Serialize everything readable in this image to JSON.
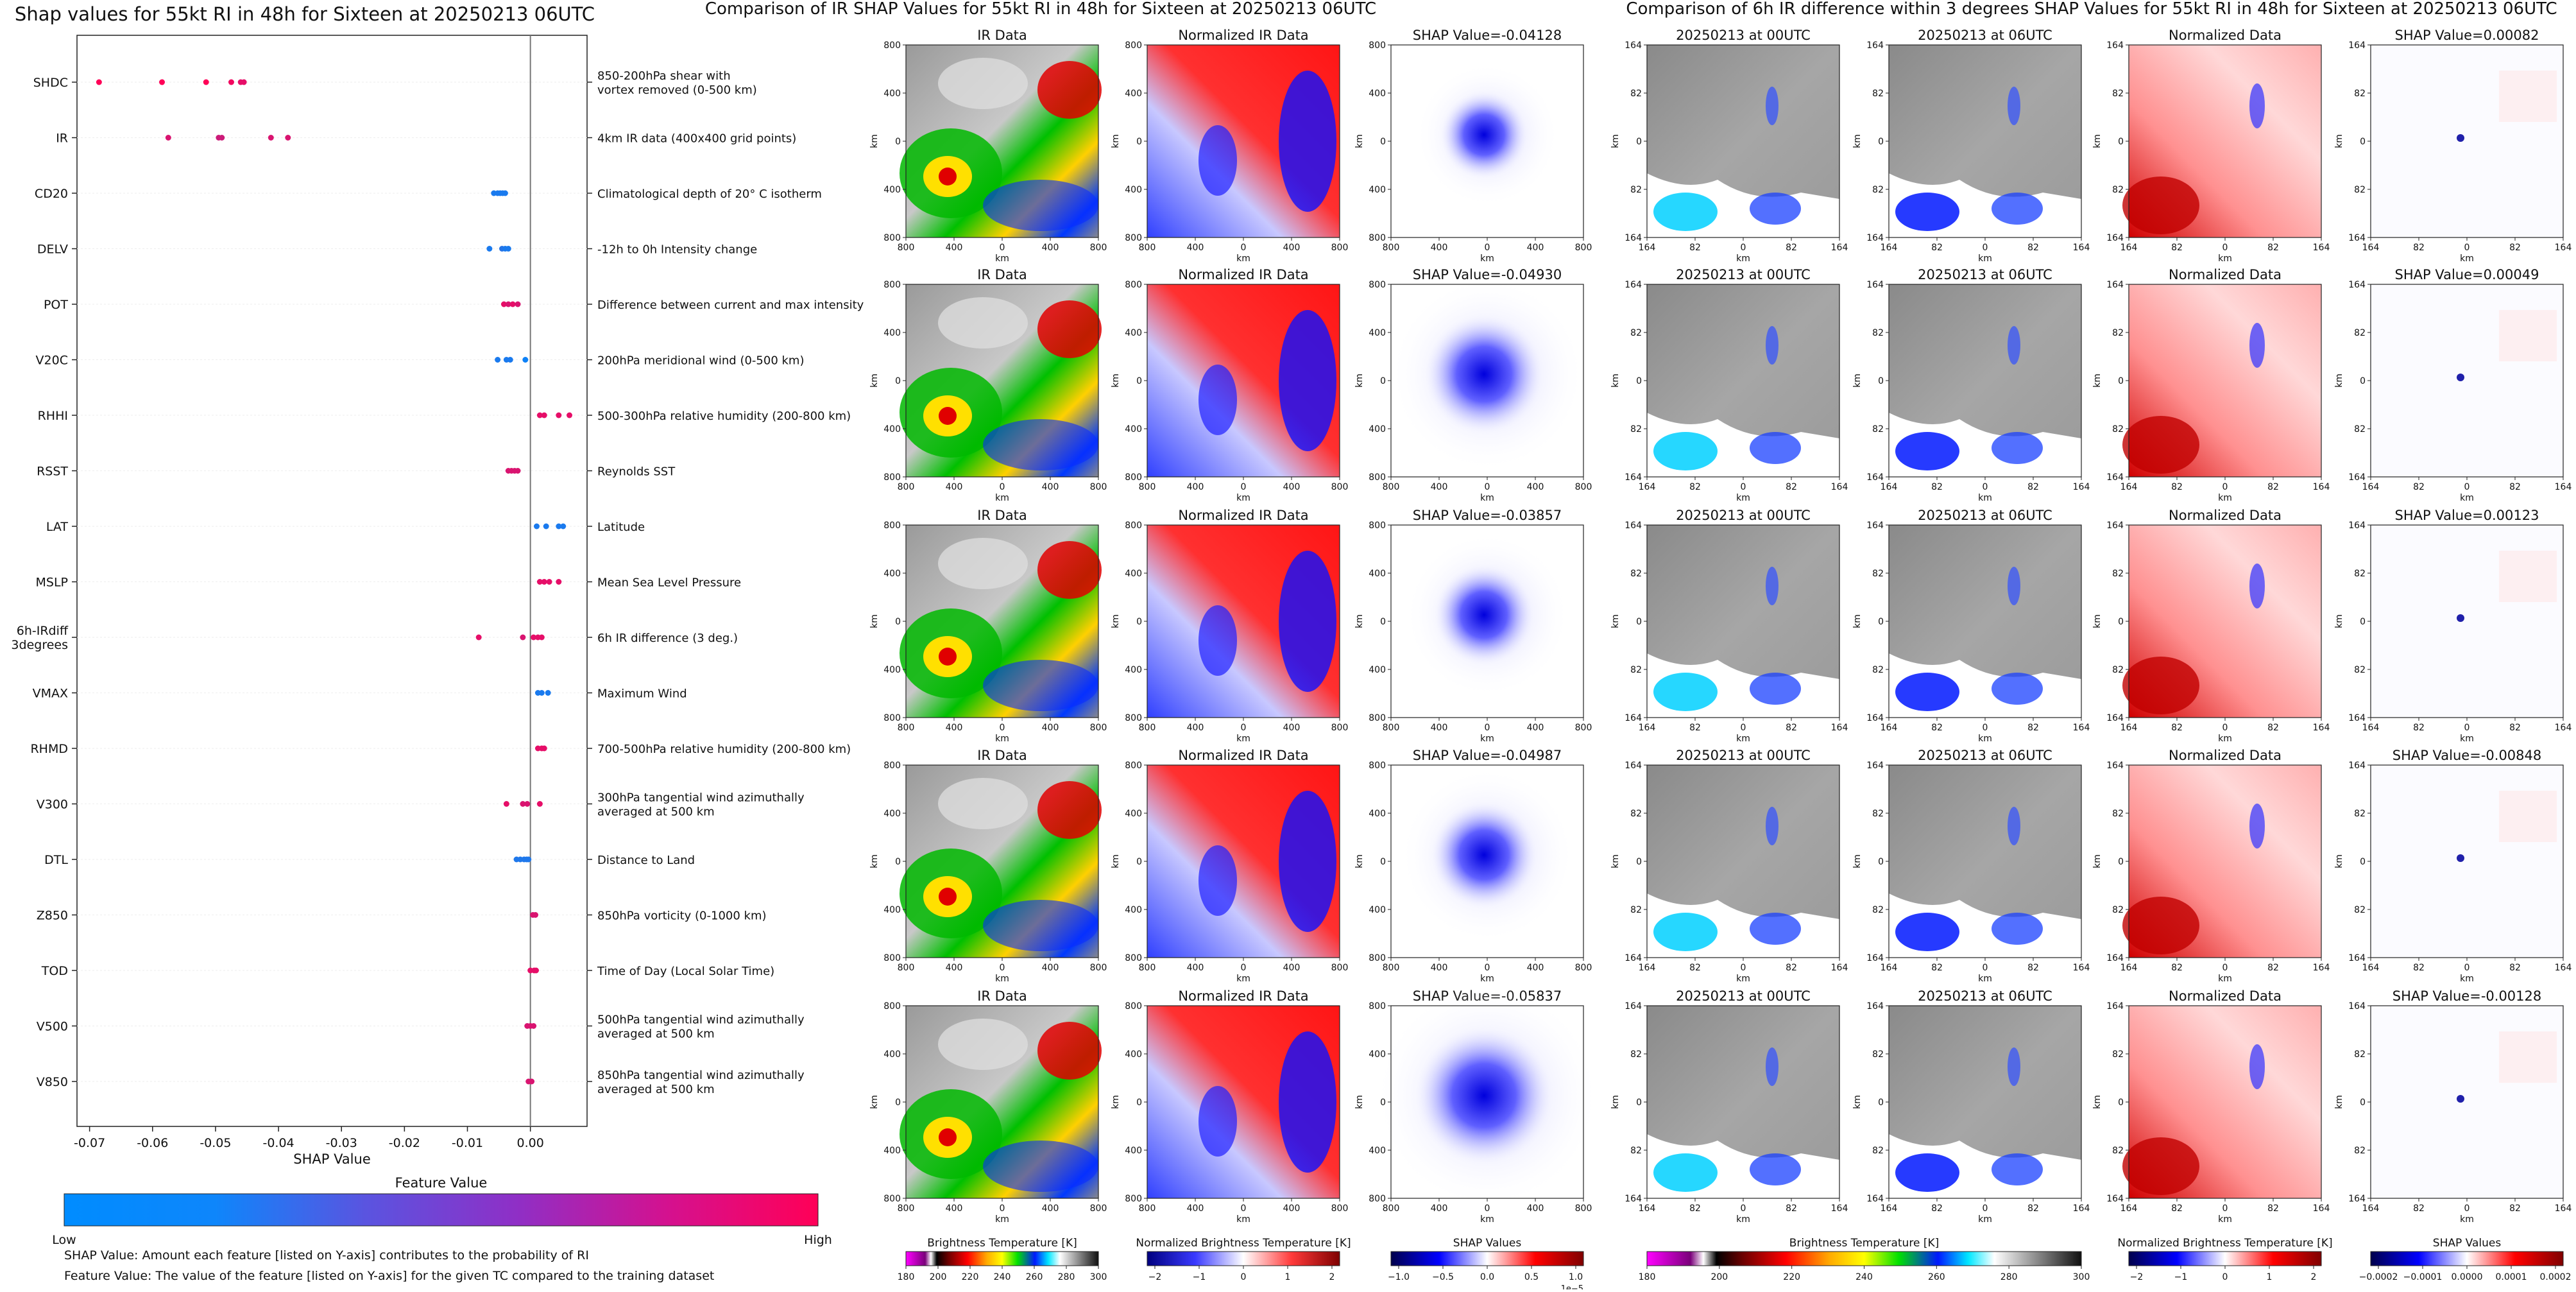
{
  "colors": {
    "feature_low": "#0088ff",
    "feature_high": "#ff0057",
    "shap_neg": "#0000cc",
    "shap_pos": "#cc0000"
  },
  "chart_data": [
    {
      "type": "scatter",
      "title": "Shap values for 55kt RI in 48h for Sixteen at 20250213 06UTC",
      "xlabel": "SHAP Value",
      "xlim": [
        -0.072,
        0.009
      ],
      "xticks": [
        "-0.07",
        "-0.06",
        "-0.05",
        "-0.04",
        "-0.03",
        "-0.02",
        "-0.01",
        "0.00"
      ],
      "xtick_values": [
        -0.07,
        -0.06,
        -0.05,
        -0.04,
        -0.03,
        -0.02,
        -0.01,
        0.0
      ],
      "colorbar": {
        "title": "Feature Value",
        "low_label": "Low",
        "high_label": "High"
      },
      "notes": [
        "SHAP Value: Amount each feature [listed on Y-axis] contributes to the probability of RI",
        "Feature Value: The value of the feature [listed on Y-axis] for the given TC compared to the training dataset"
      ],
      "features": [
        {
          "name": "SHDC",
          "desc": [
            "850-200hPa shear with",
            "vortex removed (0-500 km)"
          ],
          "points": [
            [
              -0.0685,
              1.0
            ],
            [
              -0.0585,
              1.0
            ],
            [
              -0.0515,
              1.0
            ],
            [
              -0.0475,
              0.95
            ],
            [
              -0.046,
              0.9
            ],
            [
              -0.0455,
              0.9
            ]
          ]
        },
        {
          "name": "IR",
          "desc": [
            "4km IR data (400x400 grid points)"
          ],
          "points": [
            [
              -0.0575,
              0.85
            ],
            [
              -0.0495,
              0.8
            ],
            [
              -0.049,
              0.8
            ],
            [
              -0.0412,
              0.85
            ],
            [
              -0.0385,
              0.85
            ]
          ]
        },
        {
          "name": "CD20",
          "desc": [
            "Climatological depth of 20° C isotherm"
          ],
          "points": [
            [
              -0.0058,
              0.1
            ],
            [
              -0.0052,
              0.1
            ],
            [
              -0.0048,
              0.1
            ],
            [
              -0.0044,
              0.1
            ],
            [
              -0.004,
              0.1
            ]
          ]
        },
        {
          "name": "DELV",
          "desc": [
            "-12h to 0h Intensity change"
          ],
          "points": [
            [
              -0.0065,
              0.1
            ],
            [
              -0.0045,
              0.15
            ],
            [
              -0.004,
              0.1
            ],
            [
              -0.0035,
              0.1
            ]
          ]
        },
        {
          "name": "POT",
          "desc": [
            "Difference between current and max intensity"
          ],
          "points": [
            [
              -0.0042,
              0.9
            ],
            [
              -0.0035,
              0.85
            ],
            [
              -0.0028,
              0.9
            ],
            [
              -0.002,
              0.85
            ]
          ]
        },
        {
          "name": "V20C",
          "desc": [
            "200hPa meridional wind (0-500 km)"
          ],
          "points": [
            [
              -0.0052,
              0.1
            ],
            [
              -0.0038,
              0.1
            ],
            [
              -0.0032,
              0.1
            ],
            [
              -0.0008,
              0.05
            ]
          ]
        },
        {
          "name": "RHHI",
          "desc": [
            "500-300hPa relative humidity (200-800 km)"
          ],
          "points": [
            [
              0.0015,
              0.9
            ],
            [
              0.0022,
              0.9
            ],
            [
              0.0045,
              0.9
            ],
            [
              0.0062,
              0.9
            ]
          ]
        },
        {
          "name": "RSST",
          "desc": [
            "Reynolds SST"
          ],
          "points": [
            [
              -0.0035,
              0.85
            ],
            [
              -0.003,
              0.85
            ],
            [
              -0.0025,
              0.85
            ],
            [
              -0.002,
              0.85
            ]
          ]
        },
        {
          "name": "LAT",
          "desc": [
            "Latitude"
          ],
          "points": [
            [
              0.001,
              0.1
            ],
            [
              0.0025,
              0.1
            ],
            [
              0.0045,
              0.1
            ],
            [
              0.0052,
              0.1
            ]
          ]
        },
        {
          "name": "MSLP",
          "desc": [
            "Mean Sea Level Pressure"
          ],
          "points": [
            [
              0.0015,
              0.9
            ],
            [
              0.0022,
              0.9
            ],
            [
              0.003,
              0.9
            ],
            [
              0.0045,
              0.9
            ]
          ]
        },
        {
          "name": "6h-IRdiff\n3degrees",
          "desc": [
            "6h IR difference (3 deg.)"
          ],
          "points": [
            [
              -0.0082,
              0.9
            ],
            [
              -0.0012,
              0.85
            ],
            [
              0.0005,
              0.9
            ],
            [
              0.0012,
              0.9
            ],
            [
              0.0018,
              0.9
            ]
          ]
        },
        {
          "name": "VMAX",
          "desc": [
            "Maximum Wind"
          ],
          "points": [
            [
              0.0012,
              0.1
            ],
            [
              0.0018,
              0.1
            ],
            [
              0.0028,
              0.1
            ]
          ]
        },
        {
          "name": "RHMD",
          "desc": [
            "700-500hPa relative humidity (200-800 km)"
          ],
          "points": [
            [
              0.0012,
              0.9
            ],
            [
              0.0018,
              0.9
            ],
            [
              0.0022,
              0.9
            ]
          ]
        },
        {
          "name": "V300",
          "desc": [
            "300hPa tangential wind azimuthally",
            "averaged at 500 km"
          ],
          "points": [
            [
              -0.0038,
              0.9
            ],
            [
              -0.0012,
              0.85
            ],
            [
              -0.0005,
              0.85
            ],
            [
              0.0015,
              0.9
            ]
          ]
        },
        {
          "name": "DTL",
          "desc": [
            "Distance to Land"
          ],
          "points": [
            [
              -0.0022,
              0.12
            ],
            [
              -0.0016,
              0.12
            ],
            [
              -0.001,
              0.12
            ],
            [
              -0.0006,
              0.12
            ],
            [
              -0.0003,
              0.12
            ]
          ]
        },
        {
          "name": "Z850",
          "desc": [
            "850hPa vorticity (0-1000 km)"
          ],
          "points": [
            [
              0.0004,
              0.85
            ],
            [
              0.0008,
              0.85
            ]
          ]
        },
        {
          "name": "TOD",
          "desc": [
            "Time of Day (Local Solar Time)"
          ],
          "points": [
            [
              0.0,
              0.9
            ],
            [
              0.0006,
              0.9
            ],
            [
              0.0009,
              0.9
            ]
          ]
        },
        {
          "name": "V500",
          "desc": [
            "500hPa tangential wind azimuthally",
            "averaged at 500 km"
          ],
          "points": [
            [
              -0.0005,
              0.85
            ],
            [
              0.0,
              0.85
            ],
            [
              0.0005,
              0.85
            ]
          ]
        },
        {
          "name": "V850",
          "desc": [
            "850hPa tangential wind azimuthally",
            "averaged at 500 km"
          ],
          "points": [
            [
              -0.0003,
              0.85
            ],
            [
              0.0002,
              0.85
            ]
          ]
        }
      ]
    },
    {
      "type": "heatmap",
      "title": "Comparison of IR SHAP Values for 55kt RI in 48h for Sixteen at 20250213 06UTC",
      "panel_titles": [
        "IR Data",
        "Normalized IR Data"
      ],
      "shap_titles": [
        "SHAP Value=-0.04128",
        "SHAP Value=-0.04930",
        "SHAP Value=-0.03857",
        "SHAP Value=-0.04987",
        "SHAP Value=-0.05837"
      ],
      "axis_label": "km",
      "xticks": [
        "800",
        "400",
        "0",
        "400",
        "800"
      ],
      "yticks": [
        "800",
        "400",
        "0",
        "400",
        "800"
      ],
      "colorbars": [
        {
          "label": "Brightness Temperature [K]",
          "ticks": [
            "180",
            "200",
            "220",
            "240",
            "260",
            "280",
            "300"
          ]
        },
        {
          "label": "Normalized Brightness Temperature [K]",
          "ticks": [
            "−2",
            "−1",
            "0",
            "1",
            "2"
          ]
        },
        {
          "label": "SHAP Values",
          "ticks": [
            "−1.0",
            "−0.5",
            "0.0",
            "0.5",
            "1.0"
          ],
          "offset": "1e−5"
        }
      ]
    },
    {
      "type": "heatmap",
      "title": "Comparison of 6h IR difference within 3 degrees SHAP Values for 55kt RI in 48h for Sixteen at 20250213 06UTC",
      "panel_titles": [
        "20250213 at 00UTC",
        "20250213 at 06UTC",
        "Normalized Data"
      ],
      "shap_titles": [
        "SHAP Value=0.00082",
        "SHAP Value=0.00049",
        "SHAP Value=0.00123",
        "SHAP Value=-0.00848",
        "SHAP Value=-0.00128"
      ],
      "axis_label": "km",
      "xticks": [
        "164",
        "82",
        "0",
        "82",
        "164"
      ],
      "yticks": [
        "164",
        "82",
        "0",
        "82",
        "164"
      ],
      "colorbars": [
        {
          "label": "Brightness Temperature [K]",
          "ticks": [
            "180",
            "200",
            "220",
            "240",
            "260",
            "280",
            "300"
          ]
        },
        {
          "label": "Normalized Brightness Temperature [K]",
          "ticks": [
            "−2",
            "−1",
            "0",
            "1",
            "2"
          ]
        },
        {
          "label": "SHAP Values",
          "ticks": [
            "−0.0002",
            "−0.0001",
            "0.0000",
            "0.0001",
            "0.0002"
          ]
        }
      ]
    }
  ]
}
